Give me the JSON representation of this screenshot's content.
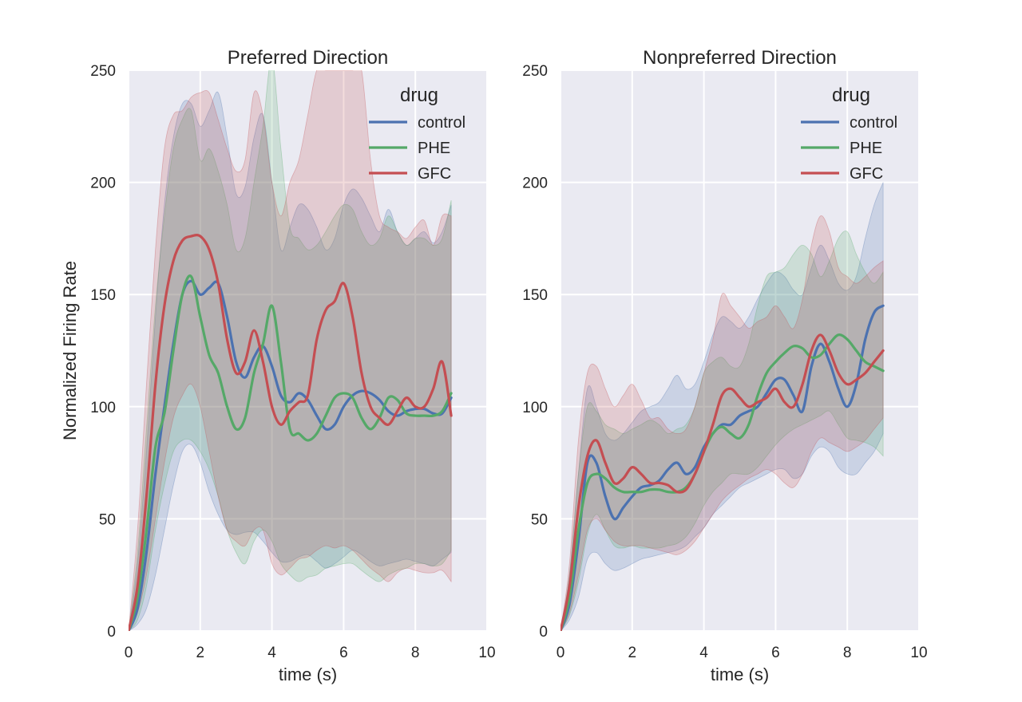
{
  "chart_data": [
    {
      "type": "line",
      "title": "Preferred Direction",
      "xlabel": "time (s)",
      "ylabel": "Normalized Firing Rate",
      "xlim": [
        0,
        10
      ],
      "ylim": [
        0,
        250
      ],
      "xticks": [
        0,
        2,
        4,
        6,
        8,
        10
      ],
      "yticks": [
        0,
        50,
        100,
        150,
        200,
        250
      ],
      "grid": true,
      "legend": {
        "title": "drug",
        "placement": "top-right"
      },
      "x": [
        0,
        0.25,
        0.5,
        0.75,
        1.0,
        1.25,
        1.5,
        1.75,
        2.0,
        2.25,
        2.5,
        2.75,
        3.0,
        3.25,
        3.5,
        3.75,
        4.0,
        4.25,
        4.5,
        4.75,
        5.0,
        5.25,
        5.5,
        5.75,
        6.0,
        6.25,
        6.5,
        6.75,
        7.0,
        7.25,
        7.5,
        7.75,
        8.0,
        8.25,
        8.5,
        8.75,
        9.0
      ],
      "series": [
        {
          "name": "control",
          "color": "#4c72b0",
          "values": [
            0,
            10,
            35,
            70,
            100,
            128,
            150,
            156,
            150,
            153,
            155,
            140,
            120,
            113,
            122,
            127,
            118,
            105,
            102,
            106,
            103,
            96,
            90,
            92,
            100,
            105,
            107,
            106,
            103,
            98,
            96,
            98,
            99,
            99,
            97,
            97,
            104
          ],
          "lower": [
            0,
            3,
            10,
            25,
            45,
            65,
            80,
            83,
            75,
            62,
            52,
            45,
            43,
            44,
            44,
            40,
            35,
            31,
            31,
            33,
            34,
            31,
            28,
            30,
            33,
            36,
            34,
            31,
            29,
            30,
            31,
            32,
            31,
            30,
            29,
            32,
            35
          ],
          "upper": [
            0,
            30,
            80,
            140,
            190,
            220,
            235,
            235,
            225,
            232,
            240,
            220,
            195,
            198,
            220,
            230,
            200,
            170,
            180,
            190,
            188,
            180,
            170,
            175,
            190,
            197,
            193,
            185,
            178,
            188,
            178,
            172,
            175,
            178,
            173,
            178,
            190
          ]
        },
        {
          "name": "PHE",
          "color": "#55a868",
          "values": [
            0,
            15,
            45,
            82,
            97,
            125,
            150,
            158,
            140,
            123,
            115,
            100,
            90,
            95,
            115,
            128,
            145,
            120,
            90,
            88,
            85,
            88,
            96,
            104,
            106,
            104,
            95,
            90,
            95,
            104,
            103,
            97,
            96,
            96,
            96,
            98,
            106
          ],
          "lower": [
            0,
            5,
            20,
            45,
            65,
            80,
            85,
            85,
            80,
            72,
            60,
            45,
            35,
            30,
            40,
            45,
            40,
            30,
            25,
            22,
            24,
            25,
            28,
            29,
            30,
            30,
            27,
            24,
            22,
            25,
            27,
            28,
            30,
            30,
            29,
            30,
            36
          ],
          "upper": [
            0,
            35,
            90,
            145,
            185,
            215,
            228,
            232,
            210,
            215,
            205,
            190,
            170,
            175,
            200,
            225,
            255,
            215,
            180,
            175,
            170,
            172,
            178,
            185,
            190,
            188,
            178,
            172,
            175,
            185,
            178,
            172,
            175,
            175,
            172,
            175,
            192
          ]
        },
        {
          "name": "GFC",
          "color": "#c44e52",
          "values": [
            0,
            20,
            60,
            110,
            145,
            165,
            174,
            176,
            176,
            170,
            155,
            130,
            115,
            120,
            134,
            120,
            100,
            92,
            98,
            102,
            105,
            130,
            143,
            147,
            155,
            140,
            115,
            100,
            95,
            92,
            98,
            104,
            100,
            100,
            108,
            120,
            96
          ],
          "lower": [
            0,
            8,
            25,
            50,
            75,
            95,
            105,
            110,
            100,
            80,
            60,
            45,
            40,
            38,
            45,
            45,
            30,
            25,
            28,
            32,
            33,
            36,
            38,
            37,
            38,
            36,
            32,
            28,
            25,
            22,
            26,
            28,
            27,
            26,
            26,
            27,
            22
          ],
          "upper": [
            0,
            45,
            110,
            170,
            215,
            230,
            232,
            238,
            240,
            240,
            228,
            215,
            205,
            210,
            240,
            230,
            200,
            185,
            200,
            210,
            230,
            250,
            250,
            250,
            250,
            250,
            250,
            210,
            185,
            180,
            178,
            175,
            180,
            183,
            172,
            185,
            185
          ]
        }
      ]
    },
    {
      "type": "line",
      "title": "Nonpreferred Direction",
      "xlabel": "time (s)",
      "ylabel": "",
      "xlim": [
        0,
        10
      ],
      "ylim": [
        0,
        250
      ],
      "xticks": [
        0,
        2,
        4,
        6,
        8,
        10
      ],
      "yticks": [
        0,
        50,
        100,
        150,
        200,
        250
      ],
      "grid": true,
      "legend": {
        "title": "drug",
        "placement": "top-right"
      },
      "x": [
        0,
        0.25,
        0.5,
        0.75,
        1.0,
        1.25,
        1.5,
        1.75,
        2.0,
        2.25,
        2.5,
        2.75,
        3.0,
        3.25,
        3.5,
        3.75,
        4.0,
        4.25,
        4.5,
        4.75,
        5.0,
        5.25,
        5.5,
        5.75,
        6.0,
        6.25,
        6.5,
        6.75,
        7.0,
        7.25,
        7.5,
        7.75,
        8.0,
        8.25,
        8.5,
        8.75,
        9.0
      ],
      "series": [
        {
          "name": "control",
          "color": "#4c72b0",
          "values": [
            0,
            12,
            40,
            75,
            75,
            60,
            50,
            55,
            60,
            64,
            65,
            67,
            72,
            75,
            70,
            73,
            82,
            88,
            92,
            92,
            96,
            98,
            100,
            106,
            112,
            112,
            105,
            98,
            118,
            128,
            120,
            108,
            100,
            110,
            130,
            142,
            145
          ],
          "lower": [
            0,
            5,
            15,
            32,
            35,
            30,
            27,
            28,
            30,
            32,
            33,
            34,
            35,
            36,
            38,
            42,
            46,
            52,
            56,
            60,
            64,
            66,
            68,
            70,
            72,
            72,
            68,
            70,
            78,
            82,
            80,
            73,
            70,
            70,
            75,
            80,
            88
          ],
          "upper": [
            0,
            25,
            70,
            108,
            100,
            88,
            85,
            88,
            93,
            98,
            100,
            102,
            108,
            114,
            108,
            110,
            120,
            132,
            140,
            138,
            135,
            140,
            148,
            155,
            160,
            158,
            152,
            150,
            162,
            172,
            165,
            155,
            152,
            158,
            175,
            190,
            200
          ]
        },
        {
          "name": "PHE",
          "color": "#55a868",
          "values": [
            0,
            15,
            45,
            66,
            70,
            68,
            64,
            62,
            62,
            62,
            63,
            63,
            62,
            62,
            64,
            70,
            80,
            88,
            91,
            88,
            86,
            92,
            105,
            115,
            120,
            124,
            127,
            126,
            122,
            123,
            128,
            132,
            130,
            125,
            120,
            118,
            116
          ],
          "lower": [
            0,
            7,
            22,
            43,
            52,
            45,
            38,
            37,
            38,
            37,
            37,
            37,
            38,
            39,
            42,
            48,
            56,
            62,
            66,
            70,
            70,
            70,
            73,
            78,
            83,
            87,
            90,
            92,
            94,
            96,
            98,
            92,
            86,
            85,
            84,
            82,
            78
          ],
          "upper": [
            0,
            25,
            70,
            100,
            98,
            92,
            90,
            88,
            90,
            92,
            94,
            92,
            88,
            90,
            92,
            100,
            115,
            120,
            122,
            118,
            118,
            128,
            145,
            158,
            160,
            162,
            168,
            172,
            168,
            158,
            165,
            175,
            178,
            168,
            160,
            155,
            160
          ]
        },
        {
          "name": "GFC",
          "color": "#c44e52",
          "values": [
            0,
            20,
            55,
            78,
            85,
            75,
            66,
            68,
            73,
            70,
            66,
            66,
            65,
            62,
            63,
            70,
            80,
            92,
            105,
            108,
            104,
            100,
            102,
            104,
            108,
            102,
            100,
            110,
            125,
            132,
            125,
            115,
            110,
            112,
            115,
            120,
            125
          ],
          "lower": [
            0,
            8,
            25,
            45,
            50,
            45,
            40,
            38,
            38,
            38,
            37,
            36,
            35,
            34,
            36,
            40,
            46,
            52,
            58,
            62,
            65,
            68,
            70,
            72,
            70,
            66,
            64,
            70,
            80,
            86,
            84,
            82,
            80,
            82,
            85,
            90,
            95
          ],
          "upper": [
            0,
            30,
            85,
            115,
            118,
            108,
            100,
            105,
            110,
            103,
            95,
            95,
            90,
            88,
            90,
            100,
            115,
            130,
            150,
            145,
            140,
            135,
            138,
            140,
            145,
            140,
            135,
            148,
            172,
            185,
            178,
            162,
            158,
            155,
            158,
            162,
            165
          ]
        }
      ]
    }
  ]
}
